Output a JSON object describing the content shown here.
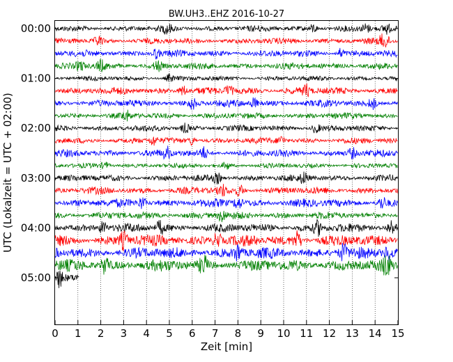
{
  "chart_data": {
    "type": "line",
    "title": "BW.UH3..EHZ 2016-10-27",
    "xlabel": "Zeit  [min]",
    "ylabel": "UTC (Lokalzeit = UTC + 02:00)",
    "xlim": [
      0,
      15
    ],
    "x_ticks": [
      "0",
      "1",
      "2",
      "3",
      "4",
      "5",
      "6",
      "7",
      "8",
      "9",
      "10",
      "11",
      "12",
      "13",
      "14",
      "15"
    ],
    "y_ticks": [
      "00:00",
      "01:00",
      "02:00",
      "03:00",
      "04:00",
      "05:00"
    ],
    "grid_x": true,
    "grid_style": "dotted",
    "trace_colors": [
      "#000000",
      "#ff0000",
      "#0000ff",
      "#008000"
    ],
    "row_interval_minutes": 15,
    "rows": [
      {
        "start": "00:00",
        "color": "#000000",
        "amplitude": 0.22,
        "end_min": 15,
        "spikes": [
          4.9,
          11.3,
          13.6,
          14.5
        ]
      },
      {
        "start": "00:15",
        "color": "#ff0000",
        "amplitude": 0.22,
        "end_min": 15,
        "spikes": [
          1.9,
          14.3,
          14.5
        ]
      },
      {
        "start": "00:30",
        "color": "#0000ff",
        "amplitude": 0.24,
        "end_min": 15,
        "spikes": [
          4.4,
          12.5
        ]
      },
      {
        "start": "00:45",
        "color": "#008000",
        "amplitude": 0.24,
        "end_min": 15,
        "spikes": [
          1.1,
          2.0,
          4.5
        ]
      },
      {
        "start": "01:00",
        "color": "#000000",
        "amplitude": 0.18,
        "end_min": 15,
        "spikes": [
          5.0
        ]
      },
      {
        "start": "01:15",
        "color": "#ff0000",
        "amplitude": 0.26,
        "end_min": 15,
        "spikes": [
          5.6,
          7.6,
          11.0
        ]
      },
      {
        "start": "01:30",
        "color": "#0000ff",
        "amplitude": 0.26,
        "end_min": 15,
        "spikes": [
          6.0,
          8.7,
          13.9
        ]
      },
      {
        "start": "01:45",
        "color": "#008000",
        "amplitude": 0.22,
        "end_min": 15,
        "spikes": [
          3.1
        ]
      },
      {
        "start": "02:00",
        "color": "#000000",
        "amplitude": 0.22,
        "end_min": 15,
        "spikes": [
          5.7,
          11.4
        ]
      },
      {
        "start": "02:15",
        "color": "#ff0000",
        "amplitude": 0.22,
        "end_min": 15,
        "spikes": [
          4.3,
          6.0,
          9.9
        ]
      },
      {
        "start": "02:30",
        "color": "#0000ff",
        "amplitude": 0.26,
        "end_min": 15,
        "spikes": [
          4.9,
          6.5,
          13.0
        ]
      },
      {
        "start": "02:45",
        "color": "#008000",
        "amplitude": 0.18,
        "end_min": 15,
        "spikes": [
          2.2,
          7.5
        ]
      },
      {
        "start": "03:00",
        "color": "#000000",
        "amplitude": 0.24,
        "end_min": 15,
        "spikes": [
          7.1,
          10.9
        ]
      },
      {
        "start": "03:15",
        "color": "#ff0000",
        "amplitude": 0.26,
        "end_min": 15,
        "spikes": [
          7.3,
          8.1
        ]
      },
      {
        "start": "03:30",
        "color": "#0000ff",
        "amplitude": 0.3,
        "end_min": 15,
        "spikes": [
          3.8,
          8.0,
          14.3
        ]
      },
      {
        "start": "03:45",
        "color": "#008000",
        "amplitude": 0.26,
        "end_min": 15,
        "spikes": [
          7.3
        ]
      },
      {
        "start": "04:00",
        "color": "#000000",
        "amplitude": 0.32,
        "end_min": 15,
        "spikes": [
          2.1,
          4.6,
          11.5,
          14.7
        ]
      },
      {
        "start": "04:15",
        "color": "#ff0000",
        "amplitude": 0.4,
        "end_min": 15,
        "spikes": [
          3.0,
          7.1,
          10.6
        ]
      },
      {
        "start": "04:30",
        "color": "#0000ff",
        "amplitude": 0.4,
        "end_min": 15,
        "spikes": [
          8.0,
          12.6,
          14.6
        ]
      },
      {
        "start": "04:45",
        "color": "#008000",
        "amplitude": 0.42,
        "end_min": 15,
        "spikes": [
          2.2,
          6.5,
          14.5
        ]
      },
      {
        "start": "05:00",
        "color": "#000000",
        "amplitude": 0.35,
        "end_min": 1.05,
        "spikes": [
          0.2
        ]
      }
    ]
  }
}
